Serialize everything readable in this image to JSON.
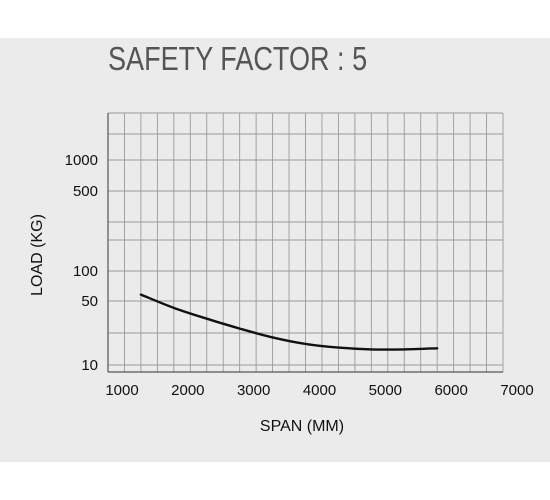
{
  "chart_data": {
    "type": "line",
    "title": "SAFETY FACTOR : 5",
    "xlabel": "SPAN (MM)",
    "ylabel": "LOAD (KG)",
    "x_ticks": [
      "1000",
      "2000",
      "3000",
      "4000",
      "5000",
      "6000",
      "7000"
    ],
    "y_ticks": [
      "10",
      "50",
      "100",
      "500",
      "1000"
    ],
    "xlim": [
      1000,
      7000
    ],
    "y_scale": "log",
    "grid": true,
    "series": [
      {
        "x": [
          1500,
          2000,
          2500,
          3000,
          3500,
          4000,
          4500,
          5000,
          5500,
          6000
        ],
        "y": [
          58,
          42,
          32,
          25,
          20,
          17,
          15.5,
          14.8,
          14.8,
          15.2
        ]
      }
    ],
    "colors": {
      "panel": "#ebebeb",
      "grid": "#9a9a9a",
      "line": "#111111",
      "title": "#555555"
    }
  }
}
